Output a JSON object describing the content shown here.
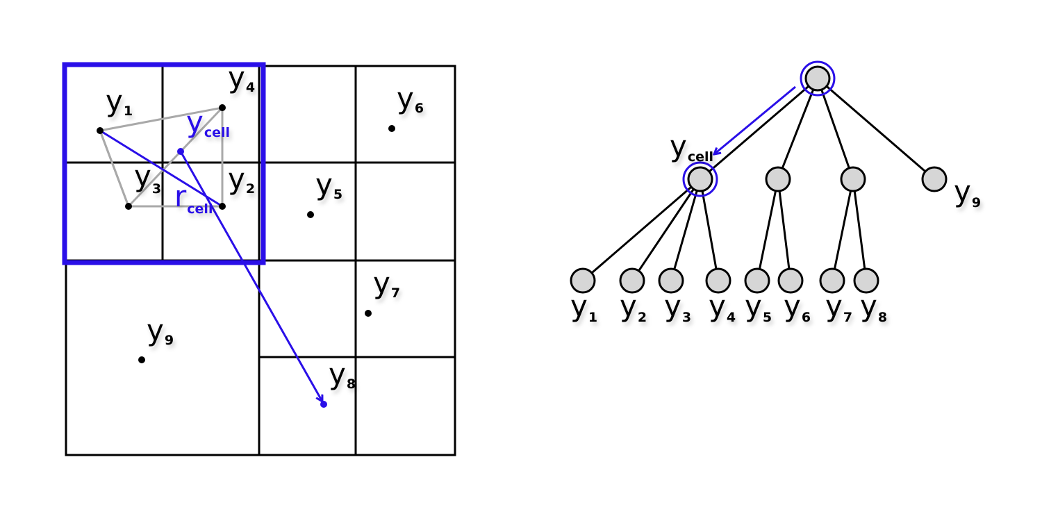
{
  "quadtree": {
    "points": [
      {
        "label": "y",
        "sub": "1"
      },
      {
        "label": "y",
        "sub": "2"
      },
      {
        "label": "y",
        "sub": "3"
      },
      {
        "label": "y",
        "sub": "4"
      },
      {
        "label": "y",
        "sub": "5"
      },
      {
        "label": "y",
        "sub": "6"
      },
      {
        "label": "y",
        "sub": "7"
      },
      {
        "label": "y",
        "sub": "8"
      },
      {
        "label": "y",
        "sub": "9"
      }
    ],
    "cell_center": {
      "label": "y",
      "sub": "cell"
    },
    "cell_radius": {
      "label": "r",
      "sub": "cell"
    }
  },
  "tree": {
    "cell_node_label": {
      "label": "y",
      "sub": "cell"
    },
    "leaves": [
      {
        "label": "y",
        "sub": "1"
      },
      {
        "label": "y",
        "sub": "2"
      },
      {
        "label": "y",
        "sub": "3"
      },
      {
        "label": "y",
        "sub": "4"
      },
      {
        "label": "y",
        "sub": "5"
      },
      {
        "label": "y",
        "sub": "6"
      },
      {
        "label": "y",
        "sub": "7"
      },
      {
        "label": "y",
        "sub": "8"
      }
    ],
    "top_leaf": {
      "label": "y",
      "sub": "9"
    }
  },
  "colors": {
    "accent": "#2a0fe8",
    "node_fill": "#d6d6d6",
    "triangle": "#a9a9a9"
  }
}
